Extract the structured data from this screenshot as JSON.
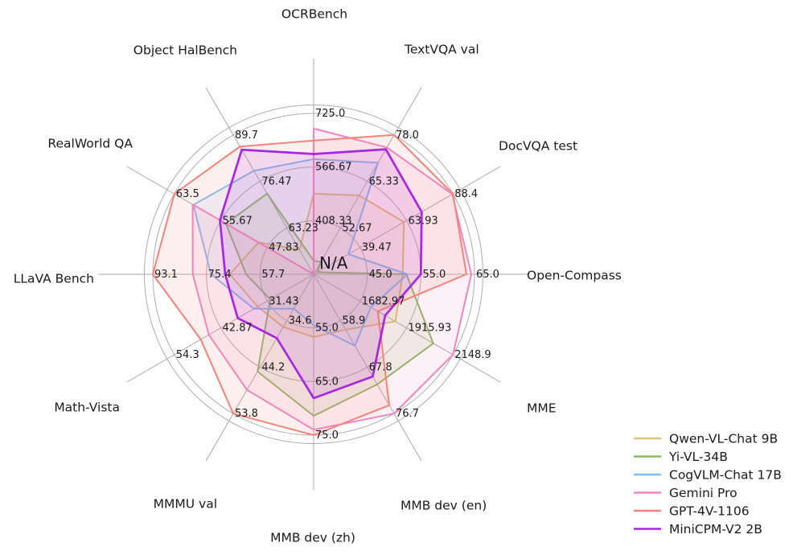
{
  "chart_data": {
    "type": "radar",
    "center_label": "N/A",
    "grid": {
      "show": true,
      "ring_fractions": [
        0.3333,
        0.6667,
        1.0
      ],
      "grid_color": "#adadad",
      "spoke_color": "#a8a8a8",
      "text_color": "#1a1a1a"
    },
    "legend_position": "bottom-right",
    "axes": [
      {
        "label": "OCRBench",
        "min": 250,
        "max": 725,
        "ticks": [
          "408.33",
          "566.67",
          "725.0"
        ]
      },
      {
        "label": "TextVQA val",
        "min": 40,
        "max": 78,
        "ticks": [
          "52.67",
          "65.33",
          "78.0"
        ]
      },
      {
        "label": "DocVQA test",
        "min": 15,
        "max": 88.4,
        "ticks": [
          "39.47",
          "63.93",
          "88.4"
        ]
      },
      {
        "label": "Open-Compass",
        "min": 35,
        "max": 65,
        "ticks": [
          "45.0",
          "55.0",
          "65.0"
        ]
      },
      {
        "label": "MME",
        "min": 1450,
        "max": 2148.9,
        "ticks": [
          "1682.97",
          "1915.93",
          "2148.9"
        ]
      },
      {
        "label": "MMB dev (en)",
        "min": 50,
        "max": 76.7,
        "ticks": [
          "58.9",
          "67.8",
          "76.7"
        ]
      },
      {
        "label": "MMB dev (zh)",
        "min": 45,
        "max": 75,
        "ticks": [
          "55.0",
          "65.0",
          "75.0"
        ]
      },
      {
        "label": "MMMU val",
        "min": 25,
        "max": 53.8,
        "ticks": [
          "34.6",
          "44.2",
          "53.8"
        ]
      },
      {
        "label": "Math-Vista",
        "min": 20,
        "max": 54.3,
        "ticks": [
          "31.43",
          "42.87",
          "54.3"
        ]
      },
      {
        "label": "LLaVA Bench",
        "min": 40,
        "max": 93.1,
        "ticks": [
          "57.7",
          "75.4",
          "93.1"
        ]
      },
      {
        "label": "RealWorld QA",
        "min": 40,
        "max": 63.5,
        "ticks": [
          "47.83",
          "55.67",
          "63.5"
        ]
      },
      {
        "label": "Object HalBench",
        "min": 50,
        "max": 89.7,
        "ticks": [
          "63.23",
          "76.47",
          "89.7"
        ]
      }
    ],
    "series": [
      {
        "name": "Qwen-VL-Chat 9B",
        "color": "#e8c06a",
        "line_width": 2,
        "values": [
          488,
          61.5,
          62.6,
          51.6,
          1860.0,
          60.6,
          56.7,
          35.9,
          33.8,
          67.7,
          49.3,
          57.0
        ]
      },
      {
        "name": "Yi-VL-34B",
        "color": "#8ab95e",
        "line_width": 2,
        "values": [
          290,
          43.4,
          16.9,
          52.3,
          2050.2,
          71.1,
          71.4,
          45.1,
          30.7,
          62.3,
          54.8,
          73.0
        ]
      },
      {
        "name": "CogVLM-Chat 17B",
        "color": "#80bdf4",
        "line_width": 2,
        "values": [
          590,
          70.4,
          33.3,
          52.5,
          1736.6,
          63.7,
          54.5,
          32.1,
          34.7,
          73.9,
          60.3,
          79.5
        ]
      },
      {
        "name": "Gemini Pro",
        "color": "#f583c0",
        "line_width": 2,
        "values": [
          680,
          74.6,
          88.1,
          64.4,
          2148.9,
          76.7,
          74.0,
          48.9,
          45.8,
          79.9,
          60.4,
          null
        ]
      },
      {
        "name": "GPT-4V-1106",
        "color": "#f8817a",
        "line_width": 2,
        "values": [
          645,
          78.0,
          88.4,
          63.5,
          1771.5,
          75.1,
          75.0,
          53.8,
          47.8,
          93.1,
          63.5,
          86.4
        ]
      },
      {
        "name": "MiniCPM-V2 2B",
        "color": "#a826e2",
        "line_width": 2.7,
        "values": [
          605,
          74.1,
          71.9,
          55.0,
          1808.6,
          69.6,
          68.1,
          38.2,
          38.7,
          69.2,
          55.8,
          85.5
        ]
      }
    ]
  }
}
